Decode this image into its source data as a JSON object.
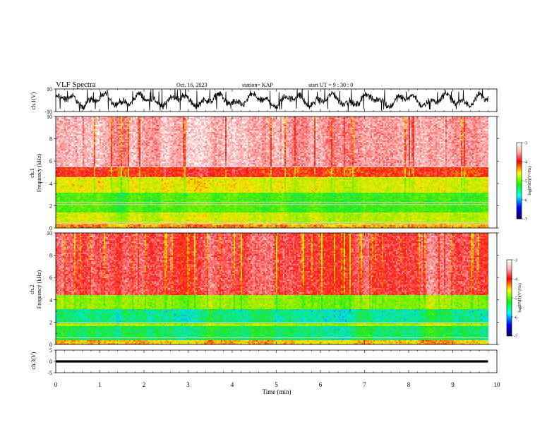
{
  "header": {
    "title": "VLF Spectra",
    "date": "Oct. 16, 2023",
    "station": "station= KAP",
    "start": "start  UT =   9  : 30 : 0"
  },
  "chart_data": [
    {
      "type": "line",
      "panel": "ch1-waveform",
      "ylabel": "ch.1(V)",
      "ylim": [
        -10,
        10
      ],
      "yticks": [
        "10",
        "-10"
      ],
      "xlim": [
        0,
        10
      ],
      "data_extent_min": [
        0,
        9.8
      ],
      "series": [
        {
          "values_range": [
            -9.8,
            9.8
          ],
          "typical_range": [
            -6,
            6
          ]
        }
      ]
    },
    {
      "type": "heatmap",
      "panel": "ch1-spectrogram",
      "ylabel": "ch.1\nFrequency (kHz)",
      "ylim": [
        0,
        10
      ],
      "yticks": [
        "0",
        "2",
        "4",
        "6",
        "8",
        "10"
      ],
      "xlim": [
        0,
        10
      ],
      "data_extent_min": [
        0,
        9.8
      ],
      "bands_khz": [
        {
          "range": [
            0,
            0.5
          ],
          "level": -4.1
        },
        {
          "range": [
            0.5,
            1.5
          ],
          "level": -4.5
        },
        {
          "range": [
            1.5,
            3.2
          ],
          "level": -5.0
        },
        {
          "range": [
            3.2,
            4.6
          ],
          "level": -4.4
        },
        {
          "range": [
            4.6,
            5.5
          ],
          "level": -3.8
        },
        {
          "range": [
            5.5,
            10
          ],
          "level": -3.3
        }
      ],
      "lines_khz": [
        5.5,
        2.3,
        2.1,
        0.5,
        0.35
      ],
      "colorbar": {
        "label": "log(PSD)(V²/Hz)",
        "ticks": [
          "-3",
          "-4",
          "-5",
          "-6",
          "-7"
        ],
        "range": [
          -7,
          -3
        ]
      }
    },
    {
      "type": "heatmap",
      "panel": "ch2-spectrogram",
      "ylabel": "ch.2\nFrequency (kHz)",
      "ylim": [
        0,
        10
      ],
      "yticks": [
        "0",
        "2",
        "4",
        "6",
        "8",
        "10"
      ],
      "xlim": [
        0,
        10
      ],
      "data_extent_min": [
        0,
        9.8
      ],
      "bands_khz": [
        {
          "range": [
            0,
            0.5
          ],
          "level": -4.2
        },
        {
          "range": [
            0.5,
            1.7
          ],
          "level": -5.3
        },
        {
          "range": [
            1.7,
            2.0
          ],
          "level": -4.6
        },
        {
          "range": [
            2.0,
            3.2
          ],
          "level": -5.4
        },
        {
          "range": [
            3.2,
            4.5
          ],
          "level": -4.7
        },
        {
          "range": [
            4.5,
            10
          ],
          "level": -3.6
        }
      ],
      "lines_khz": [
        2.0,
        0.6
      ],
      "colorbar": {
        "label": "log(PSD)(V²/Hz)",
        "ticks": [
          "-3",
          "-4",
          "-5",
          "-6",
          "-7"
        ],
        "range": [
          -7,
          -3
        ]
      }
    },
    {
      "type": "line",
      "panel": "ch3-waveform",
      "ylabel": "ch.3(V)",
      "ylim": [
        -5,
        5
      ],
      "yticks": [
        "5",
        "0",
        "-5"
      ],
      "xlim": [
        0,
        10
      ],
      "data_extent_min": [
        0,
        9.8
      ],
      "series": [
        {
          "values_range": [
            -0.5,
            0.5
          ]
        }
      ]
    }
  ],
  "xaxis": {
    "label": "Time (min)",
    "ticks": [
      "0",
      "1",
      "2",
      "3",
      "4",
      "5",
      "6",
      "7",
      "8",
      "9",
      "10"
    ],
    "range": [
      0,
      10
    ]
  },
  "colors": {
    "red": "#ff2020",
    "yellow": "#e8e800",
    "green": "#20e020",
    "cyan": "#20e0e0",
    "blue": "#2040ff",
    "navy": "#000080"
  }
}
